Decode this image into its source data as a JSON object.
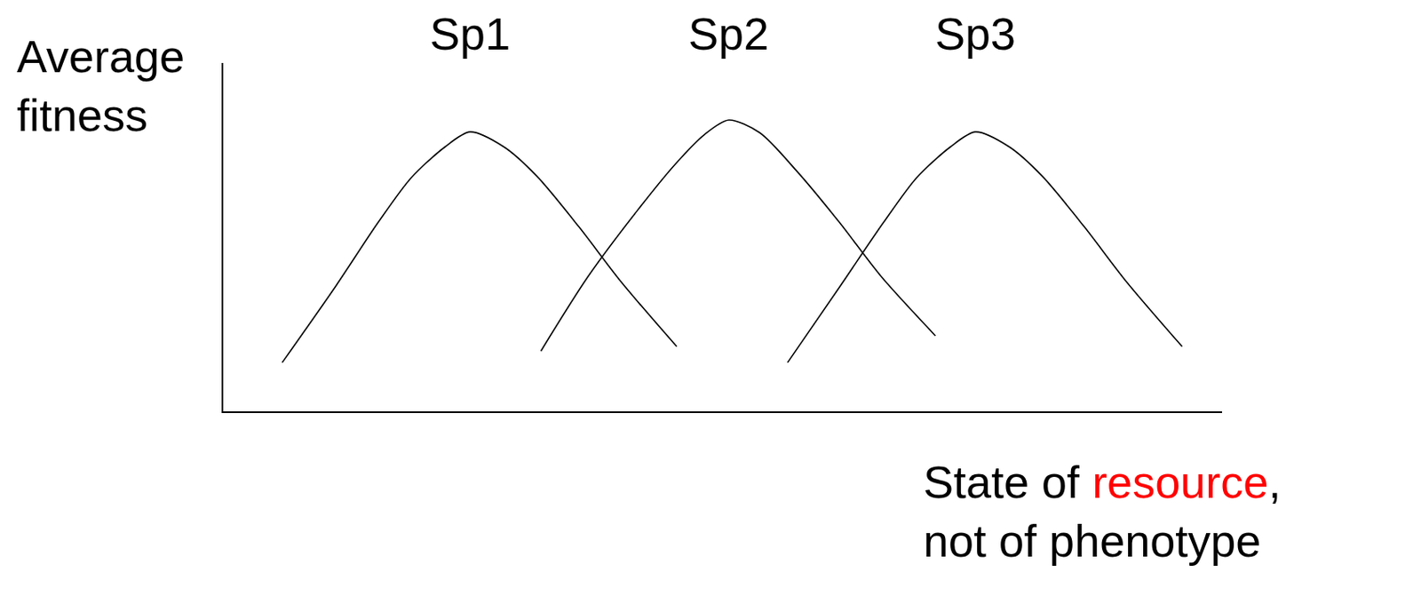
{
  "chart_data": {
    "type": "line",
    "y_label": "Average fitness",
    "x_label": "State of resource, not of phenotype",
    "x_label_highlight": "resource",
    "xlim": [
      0,
      100
    ],
    "ylim": [
      0,
      100
    ],
    "grid": false,
    "tick_labels": false,
    "series": [
      {
        "name": "Sp1",
        "color": "#000000",
        "x": [
          5.9,
          11.3,
          15.5,
          18.8,
          22.2,
          24.7,
          28.1,
          31.4,
          35.6,
          39.8,
          45.4
        ],
        "values": [
          14.0,
          36.1,
          54.2,
          67.0,
          75.9,
          80.2,
          75.9,
          67.5,
          53.0,
          37.3,
          18.6
        ]
      },
      {
        "name": "Sp2",
        "color": "#000000",
        "x": [
          31.8,
          36.5,
          41.5,
          45.3,
          48.2,
          50.6,
          53.7,
          57.5,
          61.7,
          65.9,
          71.3
        ],
        "values": [
          17.3,
          38.6,
          57.8,
          71.1,
          79.5,
          83.6,
          80.0,
          68.7,
          54.2,
          38.6,
          21.7
        ]
      },
      {
        "name": "Sp3",
        "color": "#000000",
        "x": [
          56.5,
          61.8,
          66.1,
          69.4,
          72.8,
          75.3,
          78.7,
          82.0,
          86.2,
          90.4,
          96.0
        ],
        "values": [
          14.0,
          36.1,
          54.2,
          67.0,
          75.9,
          80.2,
          75.9,
          67.5,
          53.0,
          37.3,
          18.6
        ]
      }
    ]
  }
}
